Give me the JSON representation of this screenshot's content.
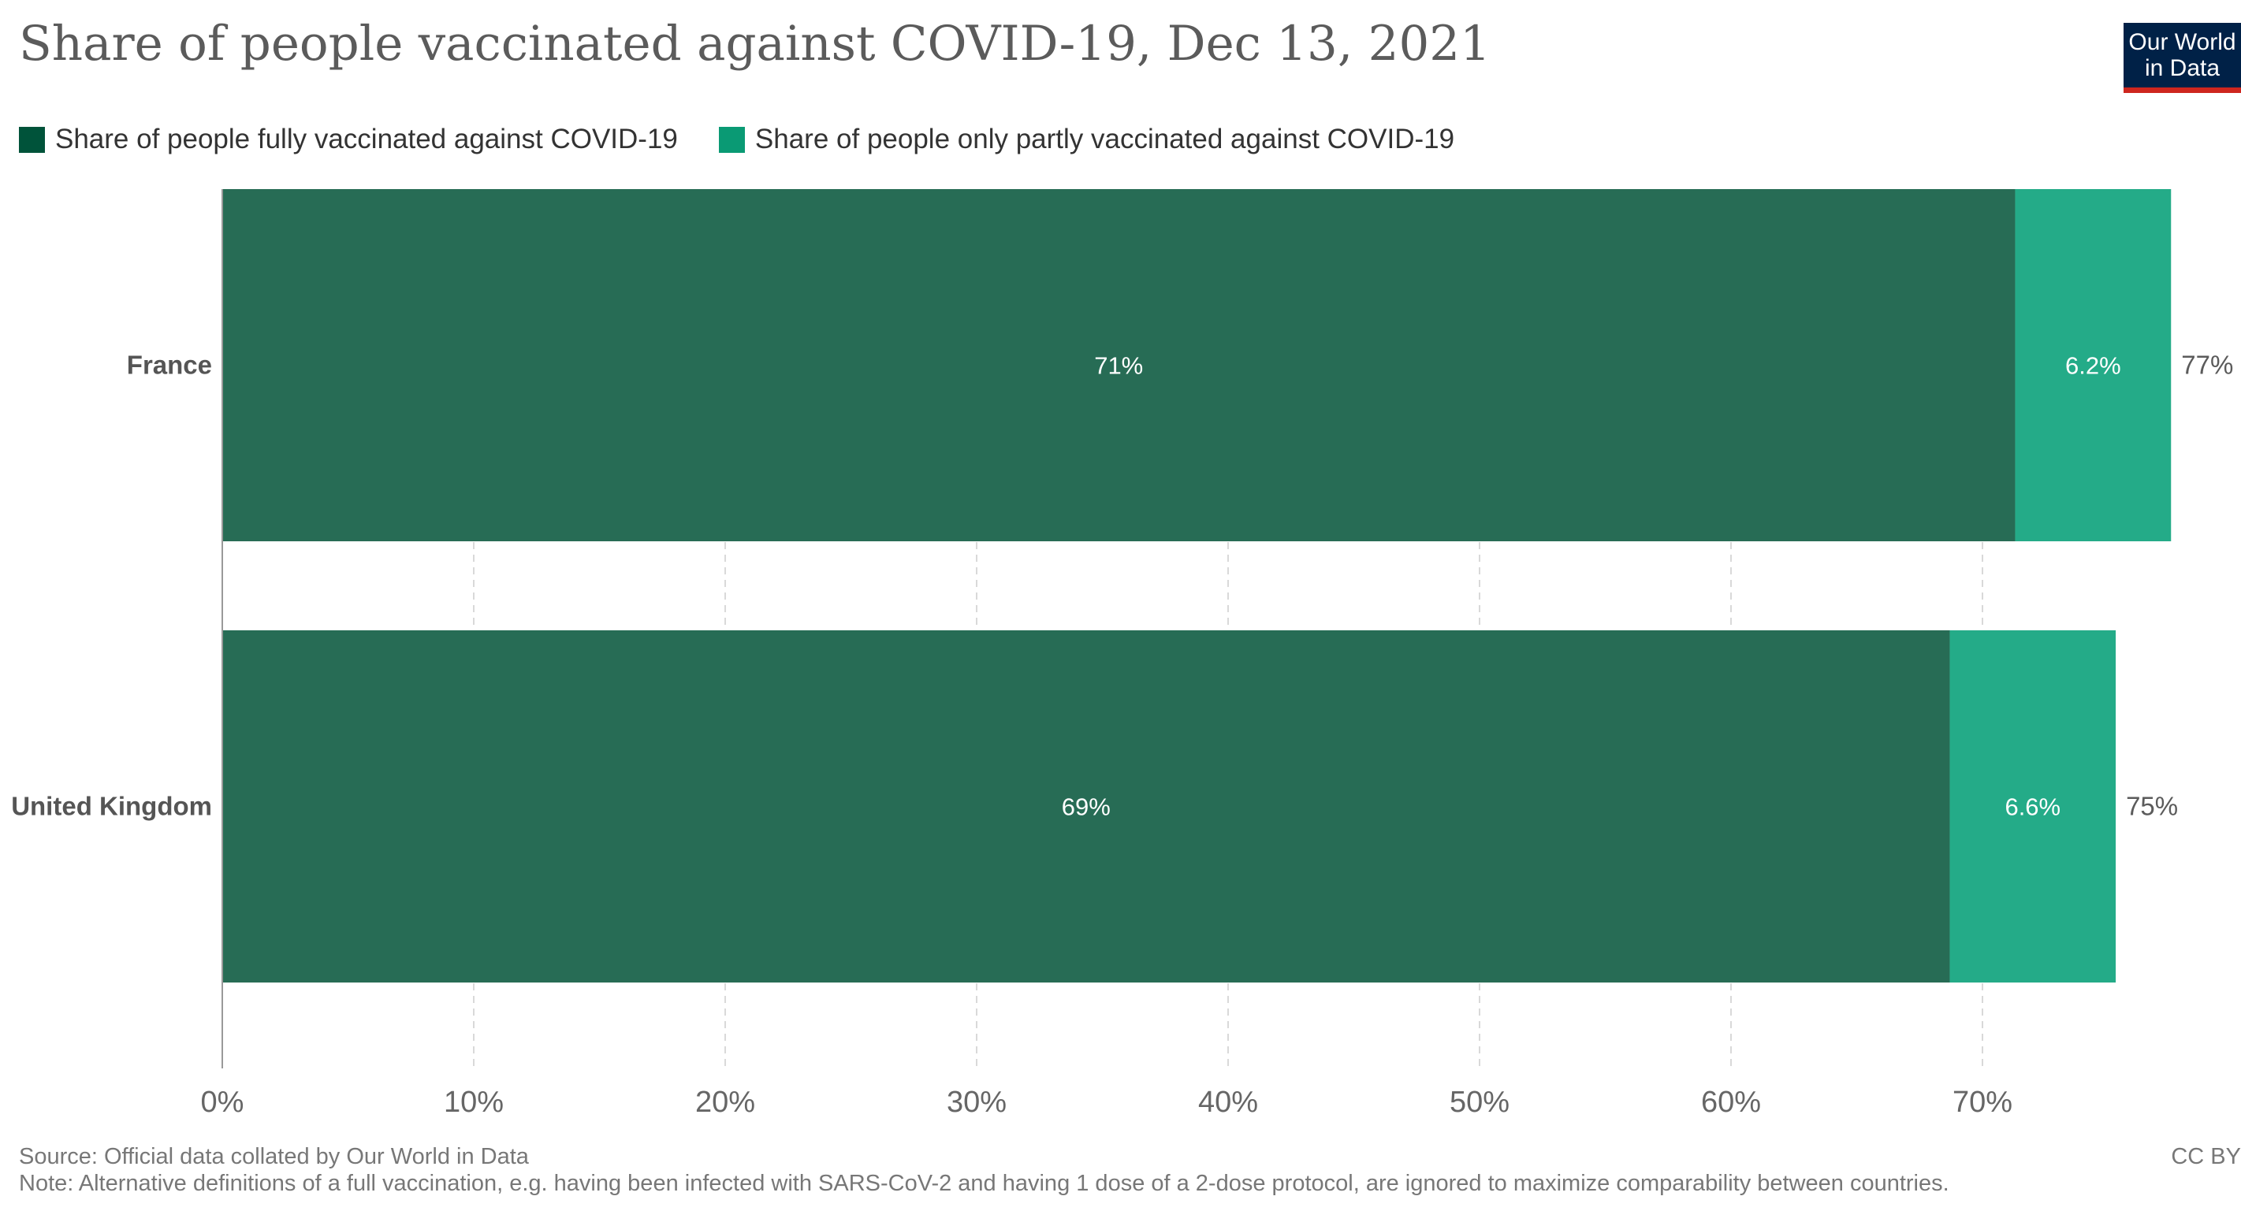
{
  "header": {
    "title": "Share of people vaccinated against COVID-19, Dec 13, 2021",
    "logo_line1": "Our World",
    "logo_line2": "in Data"
  },
  "footer": {
    "source": "Source: Official data collated by Our World in Data",
    "note": "Note: Alternative definitions of a full vaccination, e.g. having been infected with SARS-CoV-2 and having 1 dose of a 2-dose protocol, are ignored to maximize comparability between countries.",
    "license": "CC BY"
  },
  "colors": {
    "fully_swatch": "#00533a",
    "partly_swatch": "#0a9a74",
    "fully_bar": "#276c55",
    "partly_bar": "#24ab88",
    "grid": "#d9d9d9",
    "axis": "#999999"
  },
  "chart_data": {
    "type": "bar",
    "orientation": "horizontal",
    "stacked": true,
    "categories": [
      "France",
      "United Kingdom"
    ],
    "series": [
      {
        "name": "Share of people fully vaccinated against COVID-19",
        "values": [
          71.3,
          68.7
        ],
        "labels": [
          "71%",
          "69%"
        ]
      },
      {
        "name": "Share of people only partly vaccinated against COVID-19",
        "values": [
          6.2,
          6.6
        ],
        "labels": [
          "6.2%",
          "6.6%"
        ]
      }
    ],
    "totals": [
      "77%",
      "75%"
    ],
    "xlim": [
      0,
      80
    ],
    "xticks": [
      0,
      10,
      20,
      30,
      40,
      50,
      60,
      70
    ],
    "xtick_labels": [
      "0%",
      "10%",
      "20%",
      "30%",
      "40%",
      "50%",
      "60%",
      "70%"
    ],
    "grid": true,
    "legend_position": "top-left"
  }
}
